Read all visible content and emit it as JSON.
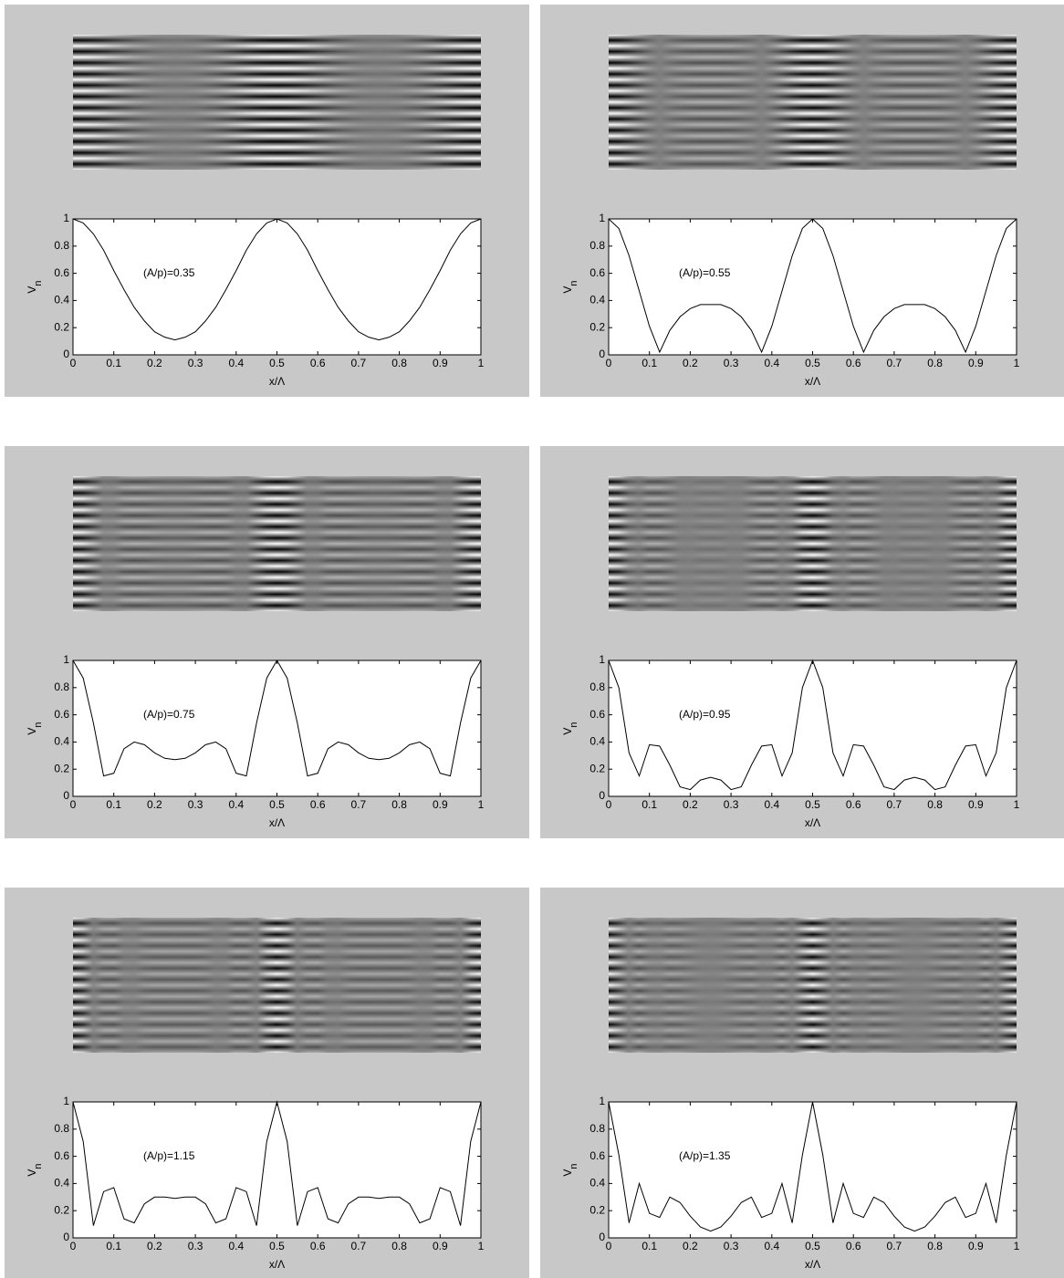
{
  "chart_data": [
    {
      "type": "line",
      "annotation": "(A/p)=0.35",
      "xlabel": "x/Λ",
      "ylabel": "V",
      "ylabel_sub": "n",
      "xlim": [
        0,
        1
      ],
      "ylim": [
        0,
        1
      ],
      "xticks": [
        0,
        0.1,
        0.2,
        0.3,
        0.4,
        0.5,
        0.6,
        0.7,
        0.8,
        0.9,
        1
      ],
      "yticks": [
        0,
        0.2,
        0.4,
        0.6,
        0.8,
        1
      ],
      "color": "#000000",
      "x": [
        0,
        0.025,
        0.05,
        0.075,
        0.1,
        0.125,
        0.15,
        0.175,
        0.2,
        0.225,
        0.25,
        0.275,
        0.3,
        0.325,
        0.35,
        0.375,
        0.4,
        0.425,
        0.45,
        0.475,
        0.5,
        0.525,
        0.55,
        0.575,
        0.6,
        0.625,
        0.65,
        0.675,
        0.7,
        0.725,
        0.75,
        0.775,
        0.8,
        0.825,
        0.85,
        0.875,
        0.9,
        0.925,
        0.95,
        0.975,
        1
      ],
      "values": [
        1,
        0.97,
        0.89,
        0.77,
        0.62,
        0.48,
        0.35,
        0.25,
        0.17,
        0.13,
        0.11,
        0.13,
        0.17,
        0.25,
        0.35,
        0.48,
        0.62,
        0.77,
        0.89,
        0.97,
        1,
        0.97,
        0.89,
        0.77,
        0.62,
        0.48,
        0.35,
        0.25,
        0.17,
        0.13,
        0.11,
        0.13,
        0.17,
        0.25,
        0.35,
        0.48,
        0.62,
        0.77,
        0.89,
        0.97,
        1
      ]
    },
    {
      "type": "line",
      "annotation": "(A/p)=0.55",
      "xlabel": "x/Λ",
      "ylabel": "V",
      "ylabel_sub": "n",
      "xlim": [
        0,
        1
      ],
      "ylim": [
        0,
        1
      ],
      "xticks": [
        0,
        0.1,
        0.2,
        0.3,
        0.4,
        0.5,
        0.6,
        0.7,
        0.8,
        0.9,
        1
      ],
      "yticks": [
        0,
        0.2,
        0.4,
        0.6,
        0.8,
        1
      ],
      "color": "#000000",
      "x": [
        0,
        0.025,
        0.05,
        0.075,
        0.1,
        0.125,
        0.15,
        0.175,
        0.2,
        0.225,
        0.25,
        0.275,
        0.3,
        0.325,
        0.35,
        0.375,
        0.4,
        0.425,
        0.45,
        0.475,
        0.5,
        0.525,
        0.55,
        0.575,
        0.6,
        0.625,
        0.65,
        0.675,
        0.7,
        0.725,
        0.75,
        0.775,
        0.8,
        0.825,
        0.85,
        0.875,
        0.9,
        0.925,
        0.95,
        0.975,
        1
      ],
      "values": [
        1,
        0.93,
        0.73,
        0.47,
        0.21,
        0.02,
        0.18,
        0.28,
        0.34,
        0.37,
        0.37,
        0.37,
        0.34,
        0.28,
        0.18,
        0.02,
        0.21,
        0.47,
        0.73,
        0.93,
        1,
        0.93,
        0.73,
        0.47,
        0.21,
        0.02,
        0.18,
        0.28,
        0.34,
        0.37,
        0.37,
        0.37,
        0.34,
        0.28,
        0.18,
        0.02,
        0.21,
        0.47,
        0.73,
        0.93,
        1
      ]
    },
    {
      "type": "line",
      "annotation": "(A/p)=0.75",
      "xlabel": "x/Λ",
      "ylabel": "V",
      "ylabel_sub": "n",
      "xlim": [
        0,
        1
      ],
      "ylim": [
        0,
        1
      ],
      "xticks": [
        0,
        0.1,
        0.2,
        0.3,
        0.4,
        0.5,
        0.6,
        0.7,
        0.8,
        0.9,
        1
      ],
      "yticks": [
        0,
        0.2,
        0.4,
        0.6,
        0.8,
        1
      ],
      "color": "#000000",
      "x": [
        0,
        0.025,
        0.05,
        0.075,
        0.1,
        0.125,
        0.15,
        0.175,
        0.2,
        0.225,
        0.25,
        0.275,
        0.3,
        0.325,
        0.35,
        0.375,
        0.4,
        0.425,
        0.45,
        0.475,
        0.5,
        0.525,
        0.55,
        0.575,
        0.6,
        0.625,
        0.65,
        0.675,
        0.7,
        0.725,
        0.75,
        0.775,
        0.8,
        0.825,
        0.85,
        0.875,
        0.9,
        0.925,
        0.95,
        0.975,
        1
      ],
      "values": [
        1,
        0.87,
        0.54,
        0.15,
        0.17,
        0.35,
        0.4,
        0.38,
        0.32,
        0.28,
        0.27,
        0.28,
        0.32,
        0.38,
        0.4,
        0.35,
        0.17,
        0.15,
        0.54,
        0.87,
        1,
        0.87,
        0.54,
        0.15,
        0.17,
        0.35,
        0.4,
        0.38,
        0.32,
        0.28,
        0.27,
        0.28,
        0.32,
        0.38,
        0.4,
        0.35,
        0.17,
        0.15,
        0.54,
        0.87,
        1
      ]
    },
    {
      "type": "line",
      "annotation": "(A/p)=0.95",
      "xlabel": "x/Λ",
      "ylabel": "V",
      "ylabel_sub": "n",
      "xlim": [
        0,
        1
      ],
      "ylim": [
        0,
        1
      ],
      "xticks": [
        0,
        0.1,
        0.2,
        0.3,
        0.4,
        0.5,
        0.6,
        0.7,
        0.8,
        0.9,
        1
      ],
      "yticks": [
        0,
        0.2,
        0.4,
        0.6,
        0.8,
        1
      ],
      "color": "#000000",
      "x": [
        0,
        0.025,
        0.05,
        0.075,
        0.1,
        0.125,
        0.15,
        0.175,
        0.2,
        0.225,
        0.25,
        0.275,
        0.3,
        0.325,
        0.35,
        0.375,
        0.4,
        0.425,
        0.45,
        0.475,
        0.5,
        0.525,
        0.55,
        0.575,
        0.6,
        0.625,
        0.65,
        0.675,
        0.7,
        0.725,
        0.75,
        0.775,
        0.8,
        0.825,
        0.85,
        0.875,
        0.9,
        0.925,
        0.95,
        0.975,
        1
      ],
      "values": [
        1,
        0.8,
        0.32,
        0.15,
        0.38,
        0.37,
        0.23,
        0.07,
        0.05,
        0.12,
        0.14,
        0.12,
        0.05,
        0.07,
        0.23,
        0.37,
        0.38,
        0.15,
        0.32,
        0.8,
        1,
        0.8,
        0.32,
        0.15,
        0.38,
        0.37,
        0.23,
        0.07,
        0.05,
        0.12,
        0.14,
        0.12,
        0.05,
        0.07,
        0.23,
        0.37,
        0.38,
        0.15,
        0.32,
        0.8,
        1
      ]
    },
    {
      "type": "line",
      "annotation": "(A/p)=1.15",
      "xlabel": "x/Λ",
      "ylabel": "V",
      "ylabel_sub": "n",
      "xlim": [
        0,
        1
      ],
      "ylim": [
        0,
        1
      ],
      "xticks": [
        0,
        0.1,
        0.2,
        0.3,
        0.4,
        0.5,
        0.6,
        0.7,
        0.8,
        0.9,
        1
      ],
      "yticks": [
        0,
        0.2,
        0.4,
        0.6,
        0.8,
        1
      ],
      "color": "#000000",
      "x": [
        0,
        0.025,
        0.05,
        0.075,
        0.1,
        0.125,
        0.15,
        0.175,
        0.2,
        0.225,
        0.25,
        0.275,
        0.3,
        0.325,
        0.35,
        0.375,
        0.4,
        0.425,
        0.45,
        0.475,
        0.5,
        0.525,
        0.55,
        0.575,
        0.6,
        0.625,
        0.65,
        0.675,
        0.7,
        0.725,
        0.75,
        0.775,
        0.8,
        0.825,
        0.85,
        0.875,
        0.9,
        0.925,
        0.95,
        0.975,
        1
      ],
      "values": [
        1,
        0.71,
        0.09,
        0.34,
        0.37,
        0.14,
        0.11,
        0.25,
        0.3,
        0.3,
        0.29,
        0.3,
        0.3,
        0.25,
        0.11,
        0.14,
        0.37,
        0.34,
        0.09,
        0.71,
        1,
        0.71,
        0.09,
        0.34,
        0.37,
        0.14,
        0.11,
        0.25,
        0.3,
        0.3,
        0.29,
        0.3,
        0.3,
        0.25,
        0.11,
        0.14,
        0.37,
        0.34,
        0.09,
        0.71,
        1
      ]
    },
    {
      "type": "line",
      "annotation": "(A/p)=1.35",
      "xlabel": "x/Λ",
      "ylabel": "V",
      "ylabel_sub": "n",
      "xlim": [
        0,
        1
      ],
      "ylim": [
        0,
        1
      ],
      "xticks": [
        0,
        0.1,
        0.2,
        0.3,
        0.4,
        0.5,
        0.6,
        0.7,
        0.8,
        0.9,
        1
      ],
      "yticks": [
        0,
        0.2,
        0.4,
        0.6,
        0.8,
        1
      ],
      "color": "#000000",
      "x": [
        0,
        0.025,
        0.05,
        0.075,
        0.1,
        0.125,
        0.15,
        0.175,
        0.2,
        0.225,
        0.25,
        0.275,
        0.3,
        0.325,
        0.35,
        0.375,
        0.4,
        0.425,
        0.45,
        0.475,
        0.5,
        0.525,
        0.55,
        0.575,
        0.6,
        0.625,
        0.65,
        0.675,
        0.7,
        0.725,
        0.75,
        0.775,
        0.8,
        0.825,
        0.85,
        0.875,
        0.9,
        0.925,
        0.95,
        0.975,
        1
      ],
      "values": [
        1,
        0.61,
        0.11,
        0.4,
        0.18,
        0.15,
        0.3,
        0.26,
        0.16,
        0.08,
        0.05,
        0.08,
        0.16,
        0.26,
        0.3,
        0.15,
        0.18,
        0.4,
        0.11,
        0.61,
        1,
        0.61,
        0.11,
        0.4,
        0.18,
        0.15,
        0.3,
        0.26,
        0.16,
        0.08,
        0.05,
        0.08,
        0.16,
        0.26,
        0.3,
        0.15,
        0.18,
        0.4,
        0.11,
        0.61,
        1
      ]
    }
  ]
}
